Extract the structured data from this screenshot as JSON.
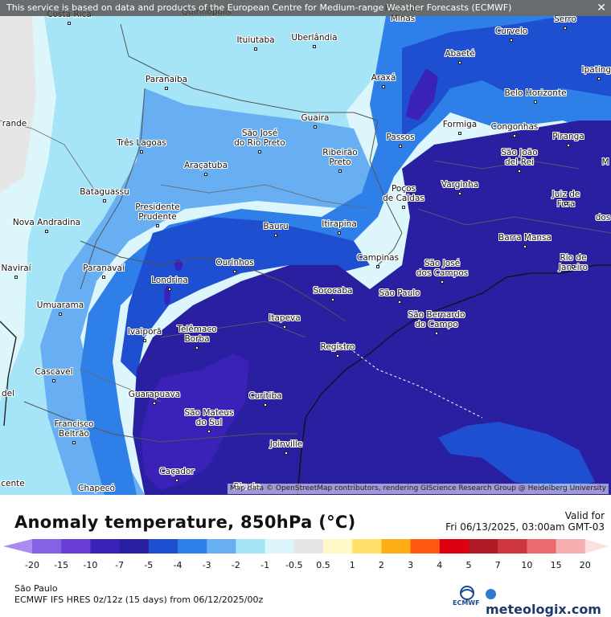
{
  "notice": "This service is based on data and products of the European Centre for Medium-range Weather Forecasts (ECMWF)",
  "attribution": "Map data © OpenStreetMap contributors, rendering GIScience Research Group @ Heidelberg University",
  "title": "Anomaly temperature, 850hPa (°C)",
  "valid_label": "Valid for",
  "valid_time": "Fri 06/13/2025, 03:00am GMT-03",
  "region": "São Paulo",
  "model_run": "ECMWF IFS HRES 0z/12z (15 days) from  06/12/2025/00z",
  "ecmwf_label": "ECMWF",
  "brand": "meteologix.com",
  "legend": {
    "ticks": [
      "-20",
      "-15",
      "-10",
      "-7",
      "-5",
      "-4",
      "-3",
      "-2",
      "-1",
      "-0.5",
      "0.5",
      "1",
      "2",
      "3",
      "4",
      "5",
      "7",
      "10",
      "15",
      "20"
    ],
    "colors": [
      "#a98bf2",
      "#8561e3",
      "#6a3ed6",
      "#3a22b8",
      "#2a1fa0",
      "#1f4fd1",
      "#2f7fe8",
      "#67aef2",
      "#a6e4f7",
      "#dcf6fb",
      "#e6e6e6",
      "#fff8c9",
      "#ffe16a",
      "#ffad16",
      "#ff5a0f",
      "#dd0010",
      "#b01a24",
      "#cf3740",
      "#ea6a6e",
      "#f7aeae",
      "#fbe0e0"
    ]
  },
  "cities": [
    {
      "name": "Costa Rica"
    },
    {
      "name": "Quirinópolis"
    },
    {
      "name": "Patos de\nMinas"
    },
    {
      "name": "Serro"
    },
    {
      "name": "Curvelo"
    },
    {
      "name": "Ituiutaba"
    },
    {
      "name": "Uberlândia"
    },
    {
      "name": "Abaeté"
    },
    {
      "name": "Ipatinga"
    },
    {
      "name": "Paranaíba"
    },
    {
      "name": "Araxá"
    },
    {
      "name": "Belo Horizonte"
    },
    {
      "name": "Guaíra"
    },
    {
      "name": "Formiga"
    },
    {
      "name": "Congonhas"
    },
    {
      "name": "São José\ndo Rio Preto"
    },
    {
      "name": "Passos"
    },
    {
      "name": "Piranga"
    },
    {
      "name": "Três Lagoas"
    },
    {
      "name": "Ribeirão\nPreto"
    },
    {
      "name": "São João\ndel-Rei"
    },
    {
      "name": "Araçatuba"
    },
    {
      "name": "Varginha"
    },
    {
      "name": "Bataguassu"
    },
    {
      "name": "Poços\nde Caldas"
    },
    {
      "name": "Juiz de Fora"
    },
    {
      "name": "Presidente\nPrudente"
    },
    {
      "name": "Nova Andradina"
    },
    {
      "name": "Bauru"
    },
    {
      "name": "Itirapina"
    },
    {
      "name": "Barra Mansa"
    },
    {
      "name": "Campinas"
    },
    {
      "name": "Rio de Janeiro"
    },
    {
      "name": "Ourinhos"
    },
    {
      "name": "Paranavaí"
    },
    {
      "name": "Naviraí"
    },
    {
      "name": "São José\ndos Campos"
    },
    {
      "name": "Londrina"
    },
    {
      "name": "Sorocaba"
    },
    {
      "name": "São Paulo"
    },
    {
      "name": "Umuarama"
    },
    {
      "name": "São Bernardo\ndo Campo"
    },
    {
      "name": "Itapeva"
    },
    {
      "name": "Ivaiporã"
    },
    {
      "name": "Telêmaco\nBorba"
    },
    {
      "name": "Registro"
    },
    {
      "name": "Cascavel"
    },
    {
      "name": "Guarapuava"
    },
    {
      "name": "Curitiba"
    },
    {
      "name": "São Mateus\ndo Sul"
    },
    {
      "name": "Francisco\nBeltrão"
    },
    {
      "name": "Joinville"
    },
    {
      "name": "Caçador"
    },
    {
      "name": "Chapecó"
    },
    {
      "name": "Rio do"
    },
    {
      "name": "rande"
    },
    {
      "name": "del"
    },
    {
      "name": "cente"
    },
    {
      "name": "dos"
    },
    {
      "name": "M"
    }
  ]
}
